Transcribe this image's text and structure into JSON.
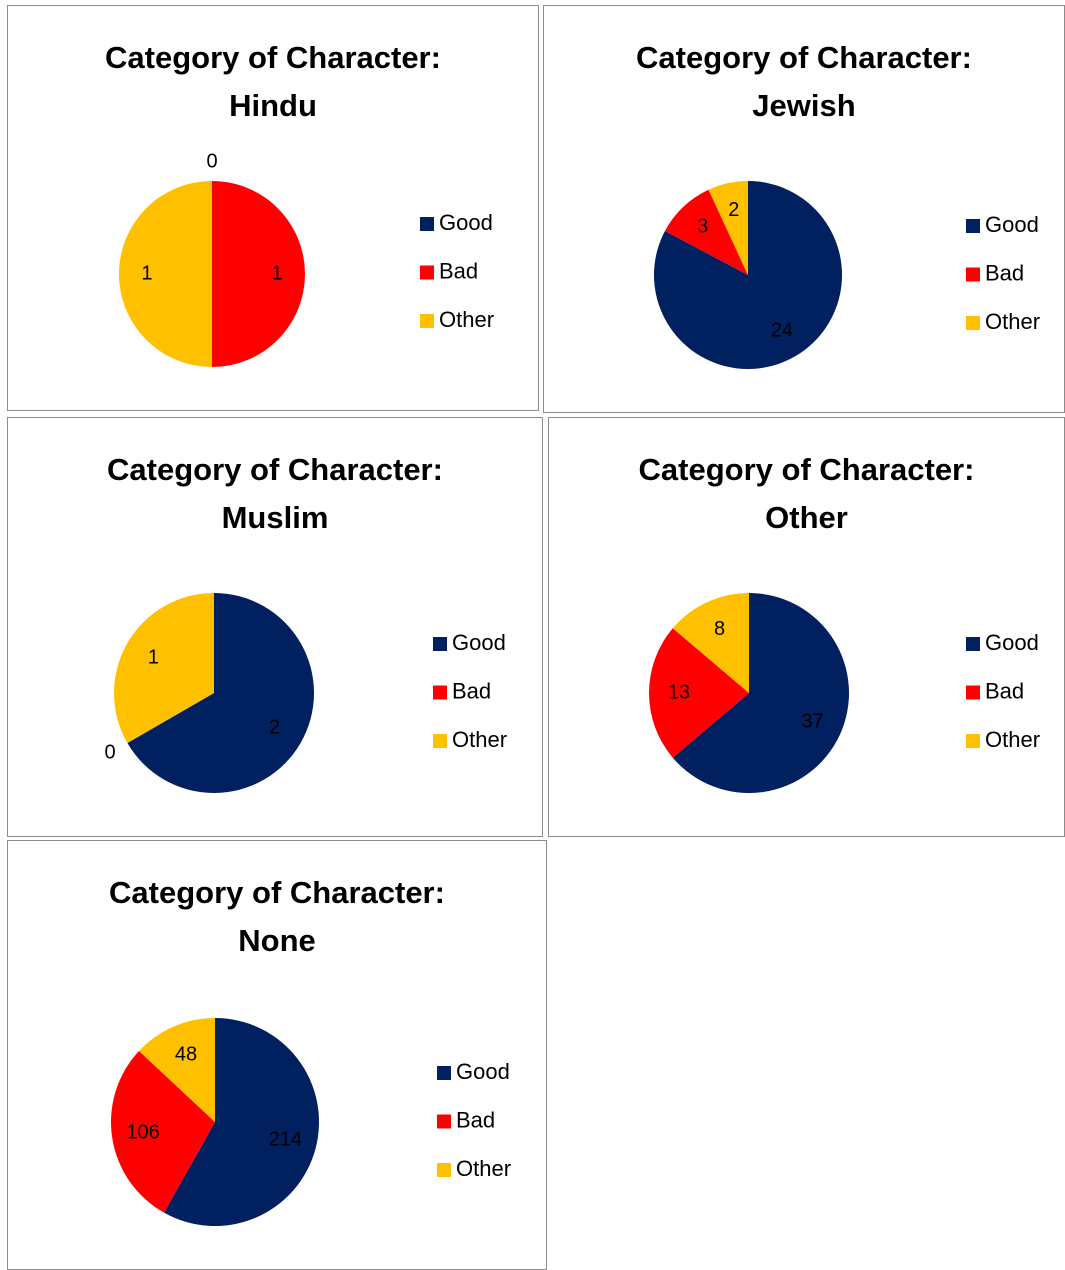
{
  "chart_data": [
    {
      "type": "pie",
      "title": "Category of Character: Hindu",
      "categories": [
        "Good",
        "Bad",
        "Other"
      ],
      "values": [
        0,
        1,
        1
      ],
      "colors": [
        "#002060",
        "#ff0000",
        "#ffc000"
      ]
    },
    {
      "type": "pie",
      "title": "Category of Character: Jewish",
      "categories": [
        "Good",
        "Bad",
        "Other"
      ],
      "values": [
        24,
        3,
        2
      ],
      "colors": [
        "#002060",
        "#ff0000",
        "#ffc000"
      ]
    },
    {
      "type": "pie",
      "title": "Category of Character: Muslim",
      "categories": [
        "Good",
        "Bad",
        "Other"
      ],
      "values": [
        2,
        0,
        1
      ],
      "colors": [
        "#002060",
        "#ff0000",
        "#ffc000"
      ]
    },
    {
      "type": "pie",
      "title": "Category of Character: Other",
      "categories": [
        "Good",
        "Bad",
        "Other"
      ],
      "values": [
        37,
        13,
        8
      ],
      "colors": [
        "#002060",
        "#ff0000",
        "#ffc000"
      ]
    },
    {
      "type": "pie",
      "title": "Category of Character: None",
      "categories": [
        "Good",
        "Bad",
        "Other"
      ],
      "values": [
        214,
        106,
        48
      ],
      "colors": [
        "#002060",
        "#ff0000",
        "#ffc000"
      ]
    }
  ]
}
